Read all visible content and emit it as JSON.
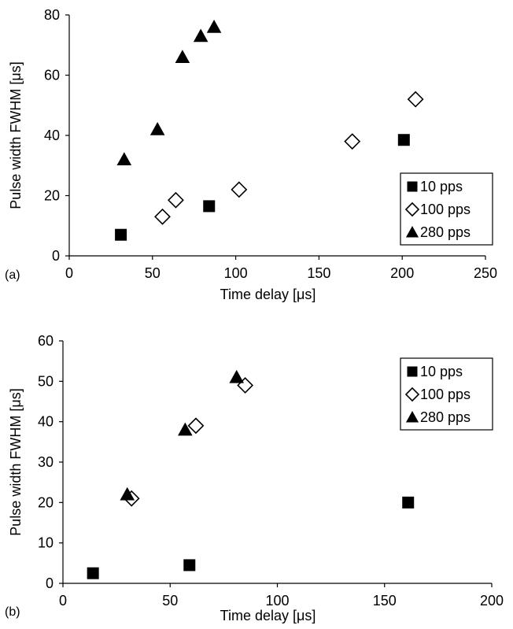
{
  "chart_data": [
    {
      "panel_label": "(a)",
      "type": "scatter",
      "xlabel": "Time delay [μs]",
      "ylabel": "Pulse width FWHM [μs]",
      "xlim": [
        0,
        250
      ],
      "ylim": [
        0,
        80
      ],
      "x_ticks": [
        0,
        50,
        100,
        150,
        200,
        250
      ],
      "y_ticks": [
        0,
        20,
        40,
        60,
        80
      ],
      "legend_position": "right",
      "series": [
        {
          "name": "10 pps",
          "marker": "square",
          "color": "#000000",
          "points": [
            [
              31,
              7
            ],
            [
              84,
              16.5
            ],
            [
              201,
              38.5
            ]
          ]
        },
        {
          "name": "100 pps",
          "marker": "diamond",
          "color": "#000000",
          "points": [
            [
              56,
              13
            ],
            [
              64,
              18.5
            ],
            [
              102,
              22
            ],
            [
              170,
              38
            ],
            [
              208,
              52
            ]
          ]
        },
        {
          "name": "280 pps",
          "marker": "triangle",
          "color": "#000000",
          "points": [
            [
              33,
              32
            ],
            [
              53,
              42
            ],
            [
              68,
              66
            ],
            [
              79,
              73
            ],
            [
              87,
              76
            ]
          ]
        }
      ]
    },
    {
      "panel_label": "(b)",
      "type": "scatter",
      "xlabel": "Time delay [μs]",
      "ylabel": "Pulse width FWHM [μs]",
      "xlim": [
        0,
        200
      ],
      "ylim": [
        0,
        60
      ],
      "x_ticks": [
        0,
        50,
        100,
        150,
        200
      ],
      "y_ticks": [
        0,
        10,
        20,
        30,
        40,
        50,
        60
      ],
      "legend_position": "top-right",
      "series": [
        {
          "name": "10 pps",
          "marker": "square",
          "color": "#000000",
          "points": [
            [
              14,
              2.5
            ],
            [
              59,
              4.5
            ],
            [
              161,
              20
            ]
          ]
        },
        {
          "name": "100 pps",
          "marker": "diamond",
          "color": "#000000",
          "points": [
            [
              32,
              21
            ],
            [
              62,
              39
            ],
            [
              85,
              49
            ]
          ]
        },
        {
          "name": "280 pps",
          "marker": "triangle",
          "color": "#000000",
          "points": [
            [
              30,
              22
            ],
            [
              57,
              38
            ],
            [
              81,
              51
            ]
          ]
        }
      ]
    }
  ]
}
